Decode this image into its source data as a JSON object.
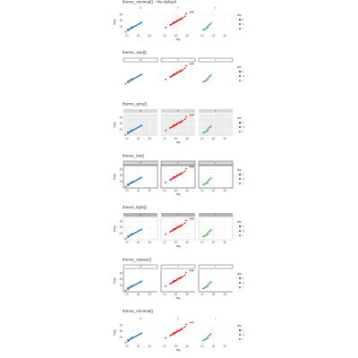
{
  "chart_data": {
    "type": "scatter",
    "xlabel": "cty",
    "ylabel": "hwy",
    "legend_title": "drv",
    "legend_position": "right",
    "xlim": [
      7,
      37
    ],
    "ylim": [
      10,
      46
    ],
    "x_ticks": [
      10,
      20,
      30
    ],
    "y_ticks": [
      20,
      30,
      40
    ],
    "facets": [
      "4",
      "f",
      "r"
    ],
    "series": [
      {
        "name": "4",
        "color": "#377EB8",
        "facet": "4",
        "x": [
          9,
          11,
          11,
          11,
          12,
          13,
          13,
          14,
          14,
          15,
          15,
          16,
          17,
          18,
          19,
          20,
          21,
          22,
          23
        ],
        "y": [
          12,
          14,
          15,
          16,
          16,
          17,
          18,
          18,
          19,
          19,
          20,
          20,
          21,
          22,
          23,
          24,
          25,
          26,
          27
        ]
      },
      {
        "name": "f",
        "color": "#E41A1C",
        "facet": "f",
        "x": [
          11,
          15,
          16,
          17,
          18,
          18,
          19,
          19,
          20,
          21,
          21,
          22,
          23,
          24,
          24,
          25,
          26,
          28,
          29,
          33,
          35
        ],
        "y": [
          19,
          23,
          24,
          25,
          26,
          27,
          27,
          28,
          28,
          29,
          30,
          31,
          31,
          32,
          33,
          33,
          35,
          37,
          41,
          44,
          44
        ]
      },
      {
        "name": "r",
        "color": "#4DAF4A",
        "facet": "r",
        "x": [
          11,
          12,
          13,
          14,
          15,
          15,
          16,
          17,
          18
        ],
        "y": [
          15,
          16,
          17,
          18,
          19,
          21,
          23,
          24,
          26
        ]
      }
    ],
    "panels": [
      {
        "title": "theme_minimal() - the default",
        "theme": "minimal"
      },
      {
        "title": "theme_void()",
        "theme": "void"
      },
      {
        "title": "theme_grey()",
        "theme": "grey"
      },
      {
        "title": "theme_bw()",
        "theme": "bw"
      },
      {
        "title": "theme_light()",
        "theme": "light"
      },
      {
        "title": "theme_classic()",
        "theme": "classic"
      },
      {
        "title": "theme_minimal()",
        "theme": "minimal"
      }
    ]
  }
}
